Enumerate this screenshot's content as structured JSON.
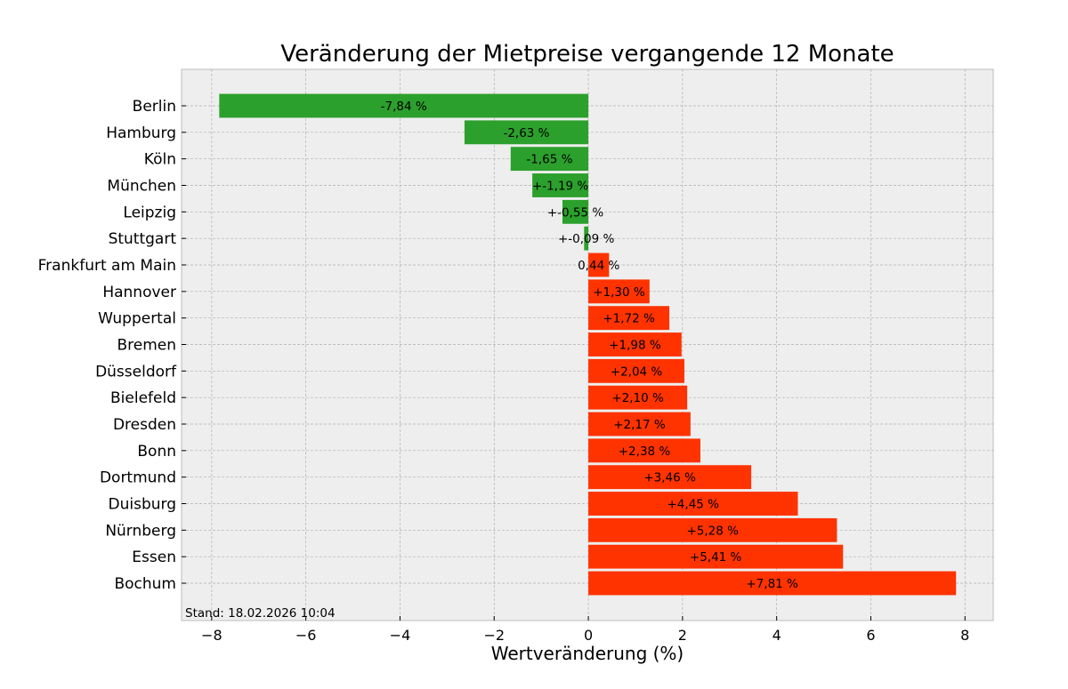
{
  "chart_data": {
    "type": "bar",
    "orientation": "horizontal",
    "title": "Veränderung der Mietpreise vergangende 12 Monate",
    "xlabel": "Wertveränderung (%)",
    "ylabel": "",
    "xlim": [
      -8.64,
      8.6
    ],
    "xticks": [
      -8,
      -6,
      -4,
      -2,
      0,
      2,
      4,
      6,
      8
    ],
    "xtick_labels": [
      "−8",
      "−6",
      "−4",
      "−2",
      "0",
      "2",
      "4",
      "6",
      "8"
    ],
    "grid": true,
    "categories": [
      "Berlin",
      "Hamburg",
      "Köln",
      "München",
      "Leipzig",
      "Stuttgart",
      "Frankfurt am Main",
      "Hannover",
      "Wuppertal",
      "Bremen",
      "Düsseldorf",
      "Bielefeld",
      "Dresden",
      "Bonn",
      "Dortmund",
      "Duisburg",
      "Nürnberg",
      "Essen",
      "Bochum"
    ],
    "values": [
      -7.84,
      -2.63,
      -1.65,
      -1.19,
      -0.55,
      -0.09,
      0.44,
      1.3,
      1.72,
      1.98,
      2.04,
      2.1,
      2.17,
      2.38,
      3.46,
      4.45,
      5.28,
      5.41,
      7.81
    ],
    "data_labels": [
      "-7,84 %",
      "-2,63 %",
      "-1,65 %",
      "+-1,19 %",
      "+-0,55 %",
      "+-0,09 %",
      "0,44 %",
      "+1,30 %",
      "+1,72 %",
      "+1,98 %",
      "+2,04 %",
      "+2,10 %",
      "+2,17 %",
      "+2,38 %",
      "+3,46 %",
      "+4,45 %",
      "+5,28 %",
      "+5,41 %",
      "+7,81 %"
    ],
    "colors": {
      "negative": "#2ca02c",
      "positive": "#ff3300",
      "background": "#eeeeee",
      "grid": "#b0b0b0"
    },
    "annotation": "Stand: 18.02.2026 10:04"
  }
}
